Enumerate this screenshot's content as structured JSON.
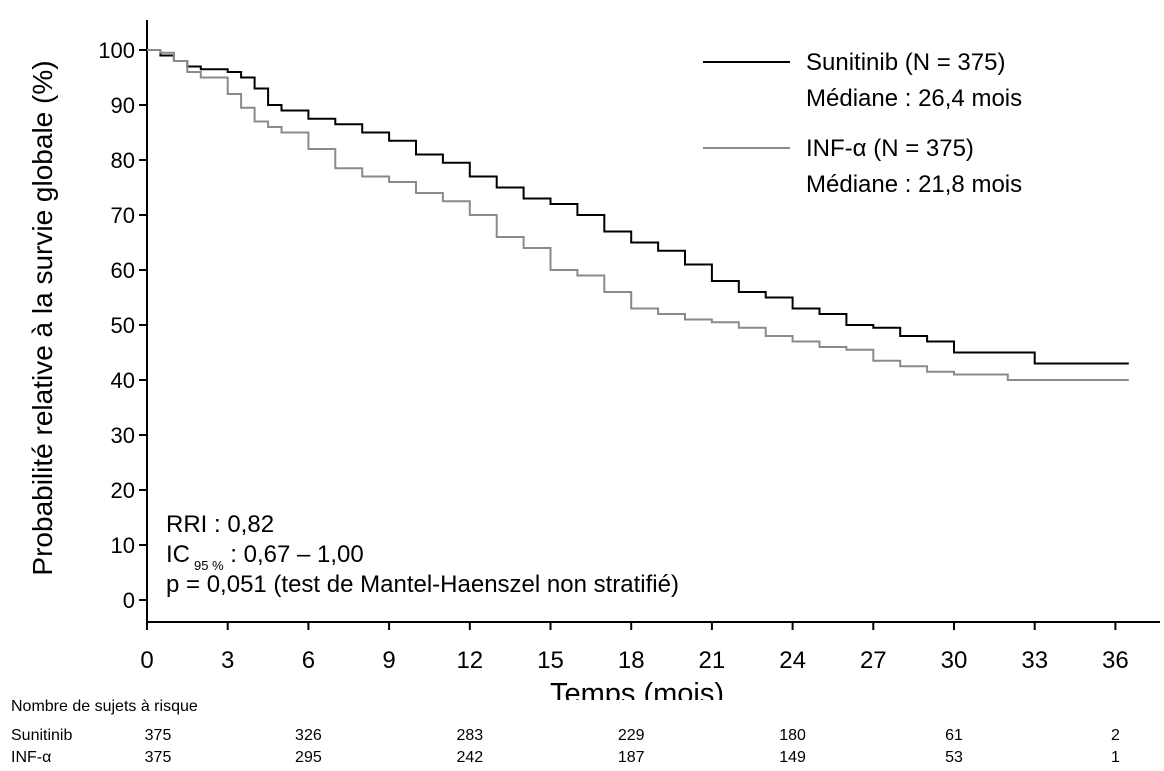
{
  "chart_data": {
    "type": "line",
    "ylabel": "Probabilité relative à la survie globale (%)",
    "xlabel": "Temps (mois)",
    "xlim": [
      0,
      36.5
    ],
    "ylim": [
      0,
      100
    ],
    "xticks": [
      0,
      3,
      6,
      9,
      12,
      15,
      18,
      21,
      24,
      27,
      30,
      33,
      36
    ],
    "yticks": [
      0,
      10,
      20,
      30,
      40,
      50,
      60,
      70,
      80,
      90,
      100
    ],
    "grid": false,
    "legend_position": "top-right",
    "series": [
      {
        "name": "Sunitinib (N = 375)",
        "sublabel": "Médiane : 26,4 mois",
        "color": "#000000",
        "x": [
          0,
          0.5,
          1,
          1.5,
          2,
          3,
          3.5,
          4,
          4.5,
          5,
          6,
          7,
          8,
          9,
          10,
          11,
          12,
          13,
          14,
          15,
          16,
          17,
          18,
          19,
          20,
          21,
          22,
          23,
          24,
          25,
          26,
          27,
          28,
          29,
          30,
          31,
          32,
          33,
          34,
          35,
          36.5
        ],
        "y": [
          100,
          99,
          98,
          97,
          96.5,
          96,
          95,
          93,
          90,
          89,
          87.5,
          86.5,
          85,
          83.5,
          81,
          79.5,
          77,
          75,
          73,
          72,
          70,
          67,
          65,
          63.5,
          61,
          58,
          56,
          55,
          53,
          52,
          50,
          49.5,
          48,
          47,
          45,
          45,
          45,
          43,
          43,
          43,
          43
        ]
      },
      {
        "name": "INF-α (N = 375)",
        "sublabel": "Médiane : 21,8 mois",
        "color": "#8a8a8a",
        "x": [
          0,
          0.5,
          1,
          1.5,
          2,
          3,
          3.5,
          4,
          4.5,
          5,
          6,
          7,
          8,
          9,
          10,
          11,
          12,
          13,
          14,
          15,
          16,
          17,
          18,
          19,
          20,
          21,
          22,
          23,
          24,
          25,
          26,
          27,
          28,
          29,
          30,
          31,
          32,
          33,
          34,
          35,
          36.5
        ],
        "y": [
          100,
          99.5,
          98,
          96,
          95,
          92,
          89.5,
          87,
          86,
          85,
          82,
          78.5,
          77,
          76,
          74,
          72.5,
          70,
          66,
          64,
          60,
          59,
          56,
          53,
          52,
          51,
          50.5,
          49.5,
          48,
          47,
          46,
          45.5,
          43.5,
          42.5,
          41.5,
          41,
          41,
          40,
          40,
          40,
          40,
          40
        ]
      }
    ],
    "annotations": {
      "rri": "RRI : 0,82",
      "ic_prefix": "IC",
      "ic_sub": "95 %",
      "ic_value": " : 0,67 – 1,00",
      "p_value": "p = 0,051 (test de Mantel-Haenszel non stratifié)"
    }
  },
  "risk_table": {
    "title": "Nombre de sujets à risque",
    "times": [
      0,
      6,
      12,
      18,
      24,
      30,
      36
    ],
    "rows": [
      {
        "label": "Sunitinib",
        "values": [
          "375",
          "326",
          "283",
          "229",
          "180",
          "61",
          "2"
        ]
      },
      {
        "label": "INF-α",
        "values": [
          "375",
          "295",
          "242",
          "187",
          "149",
          "53",
          "1"
        ]
      }
    ]
  }
}
